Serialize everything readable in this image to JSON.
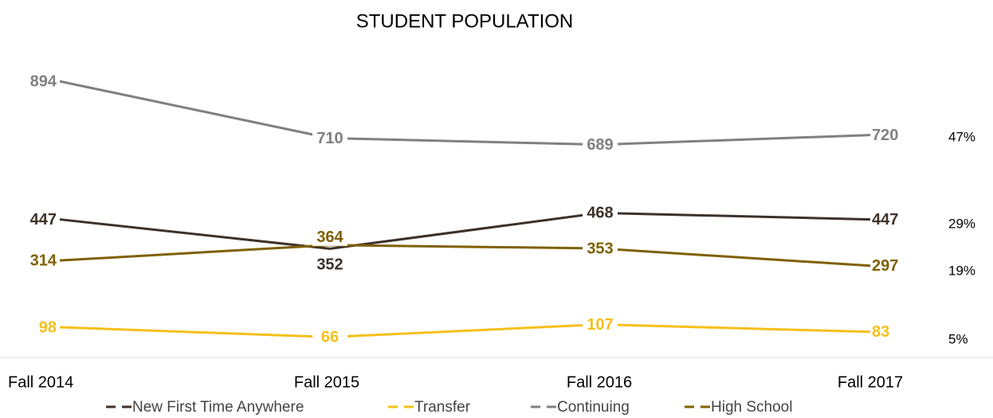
{
  "chart_data": {
    "type": "line",
    "title": "STUDENT POPULATION",
    "categories": [
      "Fall 2014",
      "Fall 2015",
      "Fall 2016",
      "Fall 2017"
    ],
    "series": [
      {
        "name": "New First Time Anywhere",
        "color": "#3d3128",
        "values": [
          447,
          352,
          468,
          447
        ]
      },
      {
        "name": "Transfer",
        "color": "#f5c01a",
        "values": [
          98,
          66,
          107,
          83
        ]
      },
      {
        "name": "Continuing",
        "color": "#808080",
        "values": [
          894,
          710,
          689,
          720
        ]
      },
      {
        "name": "High School",
        "color": "#7f6000",
        "values": [
          314,
          364,
          353,
          297
        ]
      }
    ],
    "annotations": [
      "29%",
      "5%",
      "47%",
      "19%"
    ],
    "ylim": [
      0,
      1000
    ],
    "legend": "bottom"
  }
}
